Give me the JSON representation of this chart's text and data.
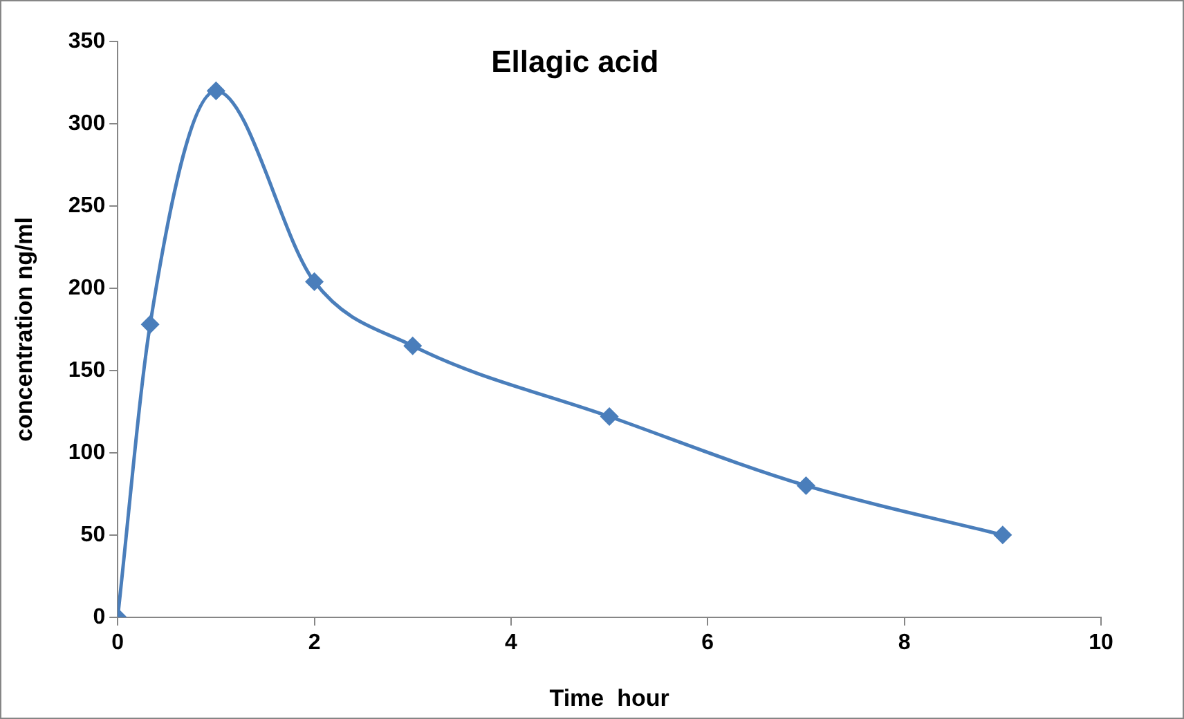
{
  "chart_data": {
    "type": "line",
    "title": "Ellagic acid",
    "xlabel": "Time  hour",
    "ylabel": "concentration ng/ml",
    "x": [
      0,
      0.33,
      1,
      2,
      3,
      5,
      7,
      9
    ],
    "series": [
      {
        "color": "#4a7ebb",
        "values": [
          0,
          178,
          320,
          204,
          165,
          122,
          80,
          50
        ]
      }
    ],
    "xlim": [
      0,
      10
    ],
    "xticks": [
      0,
      2,
      4,
      6,
      8,
      10
    ],
    "ylim": [
      0,
      350
    ],
    "yticks": [
      0,
      50,
      100,
      150,
      200,
      250,
      300,
      350
    ],
    "grid": false,
    "legend": false,
    "marker": "diamond",
    "line_style": "solid"
  }
}
